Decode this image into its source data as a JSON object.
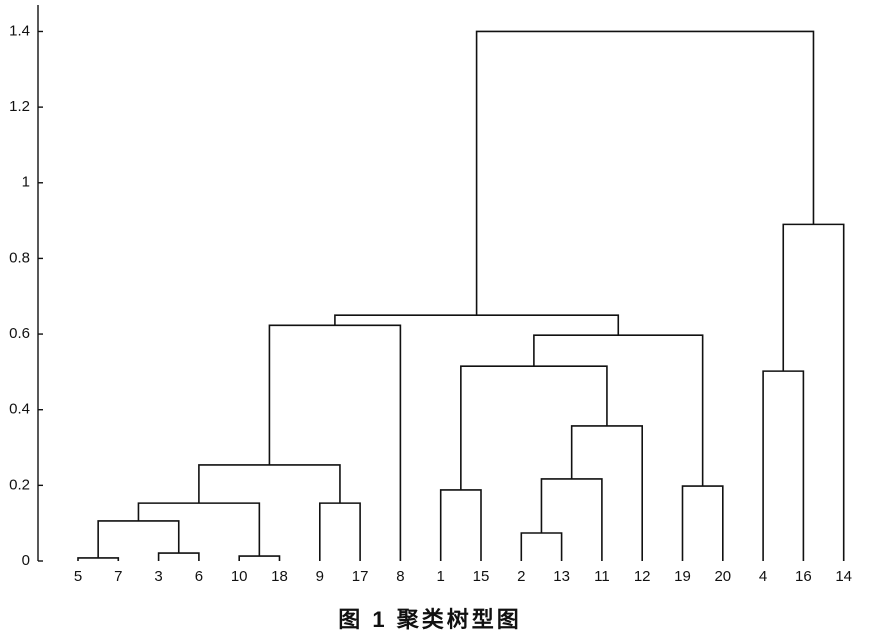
{
  "chart_data": {
    "type": "dendrogram",
    "caption": "图 1  聚类树型图",
    "ylim": [
      0,
      1.47
    ],
    "yticks": [
      0,
      0.2,
      0.4,
      0.6,
      0.8,
      1,
      1.2,
      1.4
    ],
    "tree": {
      "height": 1.4,
      "children": [
        {
          "height": 0.65,
          "children": [
            {
              "height": 0.623,
              "children": [
                {
                  "height": 0.254,
                  "children": [
                    {
                      "height": 0.153,
                      "children": [
                        {
                          "height": 0.106,
                          "children": [
                            {
                              "height": 0.008,
                              "children": [
                                "5",
                                "7"
                              ]
                            },
                            {
                              "height": 0.021,
                              "children": [
                                "3",
                                "6"
                              ]
                            }
                          ]
                        },
                        {
                          "height": 0.013,
                          "children": [
                            "10",
                            "18"
                          ]
                        }
                      ]
                    },
                    {
                      "height": 0.153,
                      "children": [
                        "9",
                        "17"
                      ]
                    }
                  ]
                },
                "8"
              ]
            },
            {
              "height": 0.597,
              "children": [
                {
                  "height": 0.515,
                  "children": [
                    {
                      "height": 0.188,
                      "children": [
                        "1",
                        "15"
                      ]
                    },
                    {
                      "height": 0.357,
                      "children": [
                        {
                          "height": 0.217,
                          "children": [
                            {
                              "height": 0.074,
                              "children": [
                                "2",
                                "13"
                              ]
                            },
                            "11"
                          ]
                        },
                        "12"
                      ]
                    }
                  ]
                },
                {
                  "height": 0.198,
                  "children": [
                    "19",
                    "20"
                  ]
                }
              ]
            }
          ]
        },
        {
          "height": 0.89,
          "children": [
            {
              "height": 0.502,
              "children": [
                "4",
                "16"
              ]
            },
            "14"
          ]
        }
      ]
    }
  }
}
